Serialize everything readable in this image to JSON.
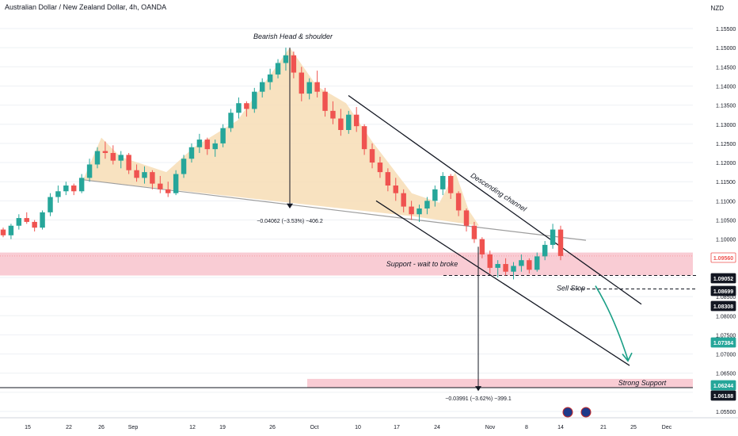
{
  "header": {
    "title": "Australian Dollar / New Zealand Dollar, 4h, OANDA"
  },
  "axis_currency": "NZD",
  "colors": {
    "up": "#26a69a",
    "down": "#ef5350",
    "hs_fill": "#f7ddb5",
    "support_zone": "#f8c7cf",
    "price_box": "#ffffff",
    "arrow": "#1a9f86"
  },
  "chart_data": {
    "type": "candlestick",
    "ylim": [
      1.054,
      1.159
    ],
    "y_ticks": [
      "1.15500",
      "1.15000",
      "1.14500",
      "1.14000",
      "1.13500",
      "1.13000",
      "1.12500",
      "1.12000",
      "1.11500",
      "1.11000",
      "1.10500",
      "1.10000",
      "1.09500",
      "1.09000",
      "1.08500",
      "1.08000",
      "1.07500",
      "1.07000",
      "1.06500",
      "1.06000",
      "1.05500"
    ],
    "x_ticks": [
      "15",
      "22",
      "26",
      "Sep",
      "12",
      "19",
      "26",
      "Oct",
      "10",
      "17",
      "24",
      "Nov",
      "8",
      "14",
      "21",
      "25",
      "Dec"
    ],
    "price_labels": [
      {
        "text": "1.09560",
        "style": "red"
      },
      {
        "text": "1.09052",
        "style": "dark"
      },
      {
        "text": "1.08699",
        "style": "dark"
      },
      {
        "text": "1.08308",
        "style": "dark"
      },
      {
        "text": "1.07384",
        "style": "green"
      },
      {
        "text": "1.06244",
        "style": "green"
      },
      {
        "text": "1.06188",
        "style": "dark"
      }
    ],
    "annotations": {
      "head_shoulder": "Bearish Head & shoulder",
      "descending_channel": "Descending channel",
      "support": "Support - wait to broke",
      "sell_stop": "Sell Stop",
      "strong_support": "Strong Support",
      "measure_1": "−0.04062 (−3.53%) −406.2",
      "measure_2": "−0.03991 (−3.62%) −399.1"
    },
    "series": [
      {
        "values": [
          [
            1.1025,
            1.103,
            1.1005,
            1.101
          ],
          [
            1.101,
            1.104,
            1.1,
            1.1035
          ],
          [
            1.1035,
            1.1065,
            1.1025,
            1.1055
          ],
          [
            1.1055,
            1.107,
            1.104,
            1.1045
          ],
          [
            1.1045,
            1.105,
            1.102,
            1.103
          ],
          [
            1.103,
            1.1075,
            1.1025,
            1.107
          ],
          [
            1.107,
            1.112,
            1.106,
            1.111
          ],
          [
            1.111,
            1.114,
            1.1095,
            1.1125
          ],
          [
            1.1125,
            1.115,
            1.1115,
            1.114
          ],
          [
            1.114,
            1.1145,
            1.1115,
            1.1125
          ],
          [
            1.1125,
            1.117,
            1.112,
            1.116
          ],
          [
            1.116,
            1.121,
            1.115,
            1.1195
          ],
          [
            1.1195,
            1.124,
            1.1185,
            1.123
          ],
          [
            1.123,
            1.1255,
            1.121,
            1.1225
          ],
          [
            1.1225,
            1.1245,
            1.1195,
            1.1205
          ],
          [
            1.1205,
            1.123,
            1.1185,
            1.122
          ],
          [
            1.122,
            1.1225,
            1.117,
            1.118
          ],
          [
            1.118,
            1.1195,
            1.115,
            1.116
          ],
          [
            1.116,
            1.119,
            1.1145,
            1.1175
          ],
          [
            1.1175,
            1.118,
            1.113,
            1.1145
          ],
          [
            1.1145,
            1.1165,
            1.112,
            1.113
          ],
          [
            1.113,
            1.115,
            1.111,
            1.112
          ],
          [
            1.112,
            1.118,
            1.1115,
            1.117
          ],
          [
            1.117,
            1.122,
            1.116,
            1.121
          ],
          [
            1.121,
            1.125,
            1.12,
            1.124
          ],
          [
            1.124,
            1.1275,
            1.1225,
            1.126
          ],
          [
            1.126,
            1.1265,
            1.122,
            1.1235
          ],
          [
            1.1235,
            1.126,
            1.1215,
            1.125
          ],
          [
            1.125,
            1.13,
            1.124,
            1.129
          ],
          [
            1.129,
            1.134,
            1.128,
            1.133
          ],
          [
            1.133,
            1.137,
            1.1315,
            1.1355
          ],
          [
            1.1355,
            1.136,
            1.132,
            1.134
          ],
          [
            1.134,
            1.1395,
            1.133,
            1.1385
          ],
          [
            1.1385,
            1.142,
            1.137,
            1.141
          ],
          [
            1.141,
            1.1445,
            1.139,
            1.143
          ],
          [
            1.143,
            1.147,
            1.142,
            1.146
          ],
          [
            1.146,
            1.15,
            1.144,
            1.148
          ],
          [
            1.148,
            1.149,
            1.142,
            1.1435
          ],
          [
            1.1435,
            1.145,
            1.136,
            1.138
          ],
          [
            1.138,
            1.142,
            1.1365,
            1.141
          ],
          [
            1.141,
            1.144,
            1.137,
            1.1385
          ],
          [
            1.1385,
            1.1395,
            1.132,
            1.1335
          ],
          [
            1.1335,
            1.136,
            1.13,
            1.1315
          ],
          [
            1.1315,
            1.134,
            1.127,
            1.1285
          ],
          [
            1.1285,
            1.1335,
            1.1275,
            1.1325
          ],
          [
            1.1325,
            1.1345,
            1.128,
            1.1295
          ],
          [
            1.1295,
            1.13,
            1.122,
            1.1235
          ],
          [
            1.1235,
            1.125,
            1.1185,
            1.12
          ],
          [
            1.12,
            1.1215,
            1.116,
            1.1175
          ],
          [
            1.1175,
            1.1185,
            1.1125,
            1.114
          ],
          [
            1.114,
            1.116,
            1.11,
            1.112
          ],
          [
            1.112,
            1.113,
            1.107,
            1.1085
          ],
          [
            1.1085,
            1.11,
            1.105,
            1.1065
          ],
          [
            1.1065,
            1.109,
            1.1045,
            1.108
          ],
          [
            1.108,
            1.111,
            1.1065,
            1.11
          ],
          [
            1.11,
            1.114,
            1.1085,
            1.113
          ],
          [
            1.113,
            1.1175,
            1.1115,
            1.1165
          ],
          [
            1.1165,
            1.117,
            1.1105,
            1.112
          ],
          [
            1.112,
            1.1125,
            1.106,
            1.1075
          ],
          [
            1.1075,
            1.108,
            1.102,
            1.1035
          ],
          [
            1.1035,
            1.1045,
            1.099,
            1.1
          ],
          [
            1.1,
            1.1005,
            1.095,
            1.096
          ],
          [
            1.096,
            1.097,
            1.091,
            1.0925
          ],
          [
            1.0925,
            1.0945,
            1.09,
            1.0935
          ],
          [
            1.0935,
            1.095,
            1.0905,
            1.0915
          ],
          [
            1.0915,
            1.094,
            1.0895,
            1.093
          ],
          [
            1.093,
            1.096,
            1.0915,
            1.0945
          ],
          [
            1.0945,
            1.095,
            1.091,
            1.092
          ],
          [
            1.092,
            1.0965,
            1.0915,
            1.0955
          ],
          [
            1.0955,
            1.0995,
            1.0945,
            1.0985
          ],
          [
            1.0985,
            1.104,
            1.0975,
            1.1025
          ],
          [
            1.1025,
            1.1035,
            1.0945,
            1.0956
          ]
        ]
      }
    ]
  }
}
